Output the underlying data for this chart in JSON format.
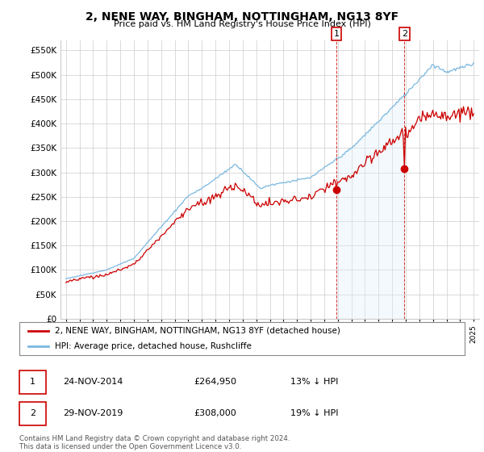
{
  "title": "2, NENE WAY, BINGHAM, NOTTINGHAM, NG13 8YF",
  "subtitle": "Price paid vs. HM Land Registry's House Price Index (HPI)",
  "legend_line1": "2, NENE WAY, BINGHAM, NOTTINGHAM, NG13 8YF (detached house)",
  "legend_line2": "HPI: Average price, detached house, Rushcliffe",
  "transaction1_date": "24-NOV-2014",
  "transaction1_price": "£264,950",
  "transaction1_hpi": "13% ↓ HPI",
  "transaction2_date": "29-NOV-2019",
  "transaction2_price": "£308,000",
  "transaction2_hpi": "19% ↓ HPI",
  "footer": "Contains HM Land Registry data © Crown copyright and database right 2024.\nThis data is licensed under the Open Government Licence v3.0.",
  "hpi_color": "#7ab8e0",
  "price_color": "#cc0000",
  "vline_color": "#cc0000",
  "shade_color": "#ddeef8",
  "ylim": [
    0,
    570000
  ],
  "yticks": [
    0,
    50000,
    100000,
    150000,
    200000,
    250000,
    300000,
    350000,
    400000,
    450000,
    500000,
    550000
  ],
  "ytick_labels": [
    "£0",
    "£50K",
    "£100K",
    "£150K",
    "£200K",
    "£250K",
    "£300K",
    "£350K",
    "£400K",
    "£450K",
    "£500K",
    "£550K"
  ],
  "transaction1_x": 2014.9,
  "transaction2_x": 2019.9,
  "transaction1_price_val": 264950,
  "transaction2_price_val": 308000
}
